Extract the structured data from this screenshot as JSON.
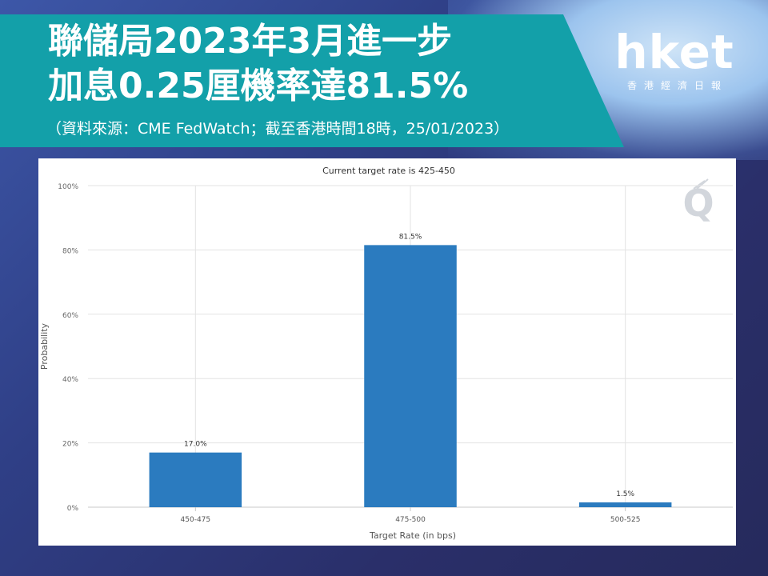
{
  "header": {
    "title_line1": "聯儲局2023年3月進一步",
    "title_line2": "加息0.25厘機率達81.5%",
    "source_note": "（資料來源：CME FedWatch；截至香港時間18時，25/01/2023）"
  },
  "logo": {
    "wordmark": "hket",
    "subtitle": "香港經濟日報"
  },
  "colors": {
    "banner": "#13a0a9",
    "bar": "#2b7bbf"
  },
  "chart_data": {
    "type": "bar",
    "title": "Current target rate is 425-450",
    "xlabel": "Target Rate (in bps)",
    "ylabel": "Probability",
    "categories": [
      "450-475",
      "475-500",
      "500-525"
    ],
    "values": [
      17.0,
      81.5,
      1.5
    ],
    "data_labels": [
      "17.0%",
      "81.5%",
      "1.5%"
    ],
    "ylim": [
      0,
      100
    ],
    "yticks": [
      0,
      20,
      40,
      60,
      80,
      100
    ],
    "ytick_labels": [
      "0%",
      "20%",
      "40%",
      "60%",
      "80%",
      "100%"
    ],
    "grid": true,
    "legend": "none"
  }
}
